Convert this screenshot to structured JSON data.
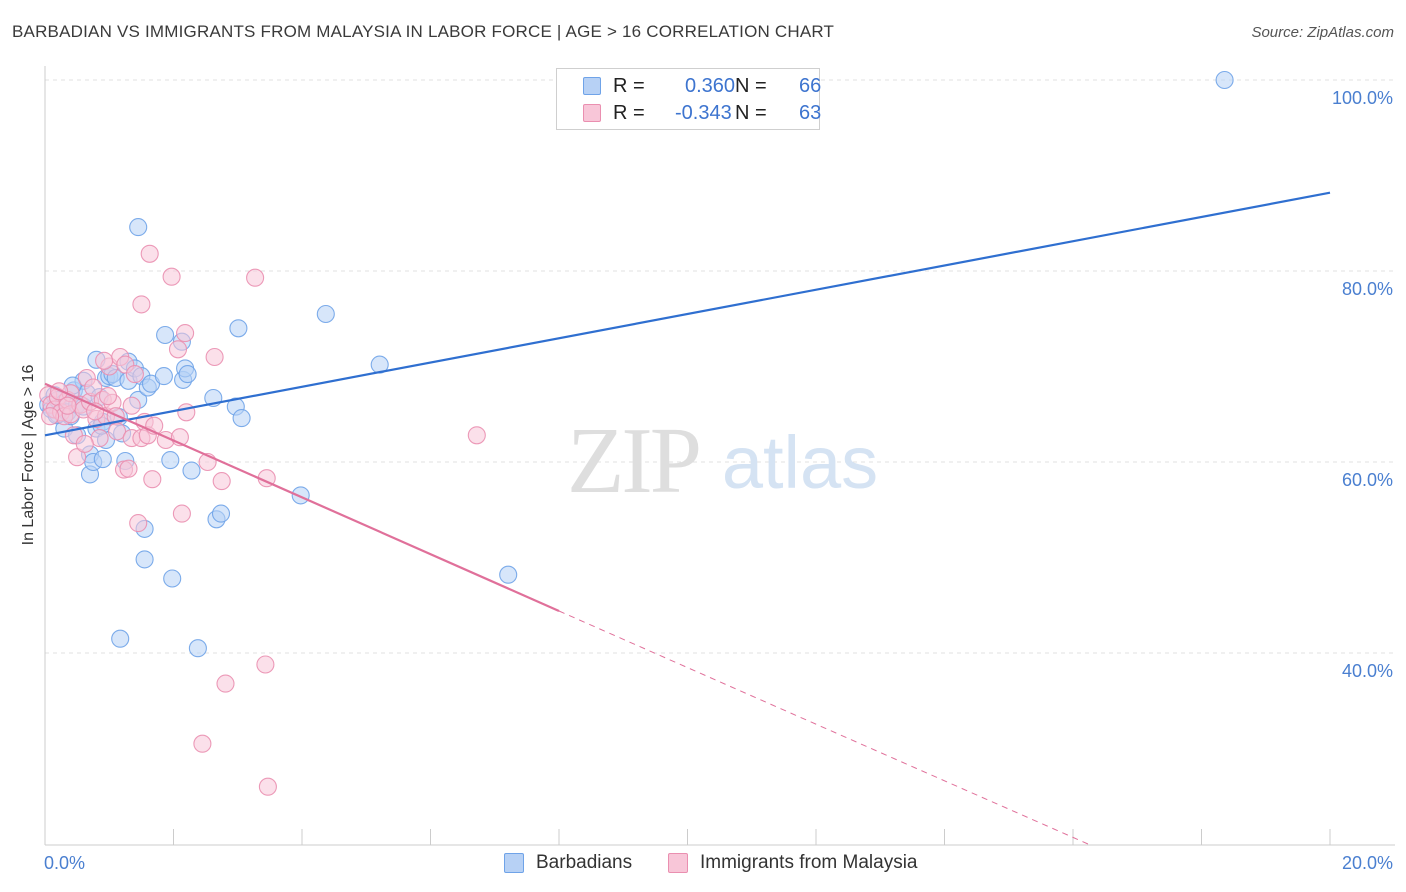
{
  "title": "BARBADIAN VS IMMIGRANTS FROM MALAYSIA IN LABOR FORCE | AGE > 16 CORRELATION CHART",
  "source": "Source: ZipAtlas.com",
  "watermark": {
    "zip": "ZIP",
    "atlas": "atlas"
  },
  "legend": {
    "r_label": "R =",
    "n_label": "N =",
    "series": [
      {
        "name": "Barbadians",
        "r": "0.360",
        "n": "66",
        "color": "#6fa3e8",
        "fill": "#b7d1f5"
      },
      {
        "name": "Immigrants from Malaysia",
        "r": "-0.343",
        "n": "63",
        "color": "#ea8fb0",
        "fill": "#f8c6d8"
      }
    ]
  },
  "chart_data": {
    "type": "scatter",
    "title": "BARBADIAN VS IMMIGRANTS FROM MALAYSIA IN LABOR FORCE | AGE > 16 CORRELATION CHART",
    "xlabel": "",
    "ylabel": "In Labor Force | Age > 16",
    "xlim": [
      0,
      0.2
    ],
    "ylim": [
      20,
      100
    ],
    "x_tick_labels": [
      {
        "value": 0,
        "label": "0.0%"
      },
      {
        "value": 0.2,
        "label": "20.0%"
      }
    ],
    "y_tick_labels": [
      {
        "value": 100,
        "label": "100.0%"
      },
      {
        "value": 80,
        "label": "80.0%"
      },
      {
        "value": 60,
        "label": "60.0%"
      },
      {
        "value": 40,
        "label": "40.0%"
      }
    ],
    "series": [
      {
        "name": "Barbadians",
        "color": "#3a78d6",
        "points": [
          [
            0.0005,
            66.0
          ],
          [
            0.001,
            65.5
          ],
          [
            0.0015,
            67.0
          ],
          [
            0.002,
            66.5
          ],
          [
            0.002,
            65.0
          ],
          [
            0.003,
            66.2
          ],
          [
            0.003,
            63.5
          ],
          [
            0.0035,
            65.2
          ],
          [
            0.004,
            64.8
          ],
          [
            0.0045,
            67.5
          ],
          [
            0.005,
            66.0
          ],
          [
            0.005,
            62.8
          ],
          [
            0.006,
            68.5
          ],
          [
            0.006,
            65.8
          ],
          [
            0.0065,
            67.2
          ],
          [
            0.007,
            60.8
          ],
          [
            0.007,
            58.7
          ],
          [
            0.0075,
            60.0
          ],
          [
            0.008,
            63.5
          ],
          [
            0.008,
            70.7
          ],
          [
            0.0085,
            66.8
          ],
          [
            0.009,
            60.3
          ],
          [
            0.009,
            64.2
          ],
          [
            0.0095,
            62.3
          ],
          [
            0.0095,
            68.8
          ],
          [
            0.01,
            69.0
          ],
          [
            0.0105,
            69.2
          ],
          [
            0.011,
            68.8
          ],
          [
            0.0115,
            64.7
          ],
          [
            0.012,
            63.0
          ],
          [
            0.0125,
            60.1
          ],
          [
            0.013,
            68.5
          ],
          [
            0.013,
            70.5
          ],
          [
            0.014,
            69.8
          ],
          [
            0.0145,
            66.5
          ],
          [
            0.015,
            69.0
          ],
          [
            0.0145,
            84.6
          ],
          [
            0.0155,
            53.0
          ],
          [
            0.0155,
            49.8
          ],
          [
            0.016,
            67.8
          ],
          [
            0.0165,
            68.2
          ],
          [
            0.0185,
            69.0
          ],
          [
            0.0187,
            73.3
          ],
          [
            0.0195,
            60.2
          ],
          [
            0.0198,
            47.8
          ],
          [
            0.0213,
            72.6
          ],
          [
            0.0215,
            68.6
          ],
          [
            0.0218,
            69.8
          ],
          [
            0.0222,
            69.2
          ],
          [
            0.0228,
            59.1
          ],
          [
            0.0238,
            40.5
          ],
          [
            0.0262,
            66.7
          ],
          [
            0.0267,
            54.0
          ],
          [
            0.0274,
            54.6
          ],
          [
            0.0297,
            65.8
          ],
          [
            0.0301,
            74.0
          ],
          [
            0.0306,
            64.6
          ],
          [
            0.0398,
            56.5
          ],
          [
            0.0437,
            75.5
          ],
          [
            0.0521,
            70.2
          ],
          [
            0.0721,
            48.2
          ],
          [
            0.1836,
            100.0
          ],
          [
            0.0117,
            41.5
          ],
          [
            0.0018,
            64.9
          ],
          [
            0.0043,
            68.0
          ],
          [
            0.0088,
            63.8
          ]
        ]
      },
      {
        "name": "Immigrants from Malaysia",
        "color": "#e56a98",
        "points": [
          [
            0.0005,
            67.0
          ],
          [
            0.001,
            66.0
          ],
          [
            0.0015,
            65.5
          ],
          [
            0.002,
            66.8
          ],
          [
            0.0025,
            65.2
          ],
          [
            0.003,
            64.8
          ],
          [
            0.0035,
            66.5
          ],
          [
            0.004,
            67.2
          ],
          [
            0.004,
            65.0
          ],
          [
            0.0045,
            62.8
          ],
          [
            0.005,
            60.5
          ],
          [
            0.0055,
            66.0
          ],
          [
            0.006,
            65.5
          ],
          [
            0.0065,
            68.8
          ],
          [
            0.007,
            66.3
          ],
          [
            0.0075,
            67.8
          ],
          [
            0.008,
            64.5
          ],
          [
            0.0085,
            62.5
          ],
          [
            0.009,
            66.5
          ],
          [
            0.0095,
            64.8
          ],
          [
            0.01,
            70.0
          ],
          [
            0.0105,
            66.2
          ],
          [
            0.011,
            64.8
          ],
          [
            0.0112,
            63.2
          ],
          [
            0.0117,
            71.0
          ],
          [
            0.0123,
            59.2
          ],
          [
            0.0125,
            70.2
          ],
          [
            0.013,
            59.3
          ],
          [
            0.0135,
            62.5
          ],
          [
            0.014,
            69.2
          ],
          [
            0.0145,
            53.6
          ],
          [
            0.015,
            76.5
          ],
          [
            0.015,
            62.5
          ],
          [
            0.0155,
            64.2
          ],
          [
            0.016,
            62.8
          ],
          [
            0.0163,
            81.8
          ],
          [
            0.0167,
            58.2
          ],
          [
            0.017,
            63.8
          ],
          [
            0.0188,
            62.3
          ],
          [
            0.0197,
            79.4
          ],
          [
            0.0207,
            71.8
          ],
          [
            0.021,
            62.6
          ],
          [
            0.0213,
            54.6
          ],
          [
            0.0218,
            73.5
          ],
          [
            0.022,
            65.2
          ],
          [
            0.0245,
            30.5
          ],
          [
            0.0253,
            60.0
          ],
          [
            0.0264,
            71.0
          ],
          [
            0.0275,
            58.0
          ],
          [
            0.0281,
            36.8
          ],
          [
            0.0327,
            79.3
          ],
          [
            0.0343,
            38.8
          ],
          [
            0.0345,
            58.3
          ],
          [
            0.0347,
            26.0
          ],
          [
            0.0672,
            62.8
          ],
          [
            0.0008,
            64.8
          ],
          [
            0.0022,
            67.4
          ],
          [
            0.0035,
            65.9
          ],
          [
            0.0062,
            61.9
          ],
          [
            0.0078,
            65.3
          ],
          [
            0.0098,
            66.9
          ],
          [
            0.0135,
            65.9
          ],
          [
            0.0092,
            70.6
          ]
        ]
      }
    ],
    "trendlines": [
      {
        "series": "Barbadians",
        "x": [
          0,
          0.2
        ],
        "y": [
          62.8,
          88.2
        ],
        "style": "solid"
      },
      {
        "series": "Immigrants from Malaysia",
        "x": [
          0,
          0.08
        ],
        "y": [
          68.2,
          44.4
        ],
        "style": "solid"
      },
      {
        "series": "Immigrants from Malaysia",
        "x": [
          0.08,
          0.163
        ],
        "y": [
          44.4,
          19.8
        ],
        "style": "dashed"
      }
    ],
    "grid": true,
    "legend_position": "top-center"
  }
}
